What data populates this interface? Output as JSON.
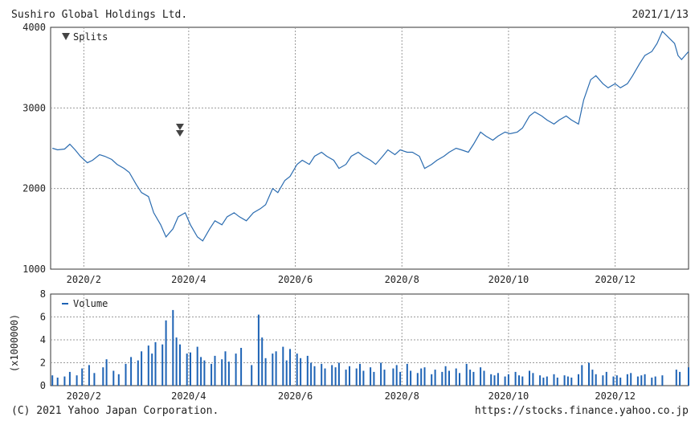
{
  "header": {
    "company": "Sushiro Global Holdings Ltd.",
    "date": "2021/1/13"
  },
  "footer": {
    "copyright": "(C) 2021 Yahoo Japan Corporation.",
    "url": "https://stocks.finance.yahoo.co.jp"
  },
  "colors": {
    "price_line": "#2b6cb0",
    "volume_bar": "#1e63b5",
    "grid": "#9a9a9a",
    "axis": "#333333",
    "split_marker": "#444444"
  },
  "chart_data": [
    {
      "type": "line",
      "name": "price",
      "legend": "Splits",
      "legend_marker": "down-triangle",
      "ylim": [
        1000,
        4000
      ],
      "yticks": [
        1000,
        2000,
        3000,
        4000
      ],
      "xlim_day_index": [
        0,
        365
      ],
      "xtick_labels": [
        "2020/2",
        "2020/4",
        "2020/6",
        "2020/8",
        "2020/10",
        "2020/12"
      ],
      "xtick_dates": [
        "2020-02-01",
        "2020-04-01",
        "2020-06-01",
        "2020-08-01",
        "2020-10-01",
        "2020-12-01"
      ],
      "split_markers": [
        {
          "date": "2020-03-27",
          "count": 2
        }
      ],
      "grid": true,
      "points": [
        [
          "2020-01-14",
          2500
        ],
        [
          "2020-01-17",
          2480
        ],
        [
          "2020-01-21",
          2490
        ],
        [
          "2020-01-24",
          2550
        ],
        [
          "2020-01-27",
          2480
        ],
        [
          "2020-01-30",
          2400
        ],
        [
          "2020-02-03",
          2320
        ],
        [
          "2020-02-06",
          2350
        ],
        [
          "2020-02-10",
          2420
        ],
        [
          "2020-02-13",
          2400
        ],
        [
          "2020-02-17",
          2360
        ],
        [
          "2020-02-20",
          2300
        ],
        [
          "2020-02-24",
          2250
        ],
        [
          "2020-02-27",
          2200
        ],
        [
          "2020-03-02",
          2050
        ],
        [
          "2020-03-05",
          1950
        ],
        [
          "2020-03-09",
          1900
        ],
        [
          "2020-03-12",
          1700
        ],
        [
          "2020-03-16",
          1550
        ],
        [
          "2020-03-19",
          1400
        ],
        [
          "2020-03-23",
          1500
        ],
        [
          "2020-03-26",
          1650
        ],
        [
          "2020-03-30",
          1700
        ],
        [
          "2020-04-02",
          1550
        ],
        [
          "2020-04-06",
          1400
        ],
        [
          "2020-04-09",
          1350
        ],
        [
          "2020-04-13",
          1500
        ],
        [
          "2020-04-16",
          1600
        ],
        [
          "2020-04-20",
          1550
        ],
        [
          "2020-04-23",
          1650
        ],
        [
          "2020-04-27",
          1700
        ],
        [
          "2020-04-30",
          1650
        ],
        [
          "2020-05-04",
          1600
        ],
        [
          "2020-05-08",
          1700
        ],
        [
          "2020-05-12",
          1750
        ],
        [
          "2020-05-15",
          1800
        ],
        [
          "2020-05-19",
          2000
        ],
        [
          "2020-05-22",
          1950
        ],
        [
          "2020-05-26",
          2100
        ],
        [
          "2020-05-29",
          2150
        ],
        [
          "2020-06-02",
          2300
        ],
        [
          "2020-06-05",
          2350
        ],
        [
          "2020-06-09",
          2300
        ],
        [
          "2020-06-12",
          2400
        ],
        [
          "2020-06-16",
          2450
        ],
        [
          "2020-06-19",
          2400
        ],
        [
          "2020-06-23",
          2350
        ],
        [
          "2020-06-26",
          2250
        ],
        [
          "2020-06-30",
          2300
        ],
        [
          "2020-07-03",
          2400
        ],
        [
          "2020-07-07",
          2450
        ],
        [
          "2020-07-10",
          2400
        ],
        [
          "2020-07-14",
          2350
        ],
        [
          "2020-07-17",
          2300
        ],
        [
          "2020-07-21",
          2400
        ],
        [
          "2020-07-24",
          2480
        ],
        [
          "2020-07-28",
          2420
        ],
        [
          "2020-07-31",
          2480
        ],
        [
          "2020-08-04",
          2450
        ],
        [
          "2020-08-07",
          2450
        ],
        [
          "2020-08-11",
          2400
        ],
        [
          "2020-08-14",
          2250
        ],
        [
          "2020-08-18",
          2300
        ],
        [
          "2020-08-21",
          2350
        ],
        [
          "2020-08-25",
          2400
        ],
        [
          "2020-08-28",
          2450
        ],
        [
          "2020-09-01",
          2500
        ],
        [
          "2020-09-04",
          2480
        ],
        [
          "2020-09-08",
          2450
        ],
        [
          "2020-09-11",
          2550
        ],
        [
          "2020-09-15",
          2700
        ],
        [
          "2020-09-18",
          2650
        ],
        [
          "2020-09-22",
          2600
        ],
        [
          "2020-09-25",
          2650
        ],
        [
          "2020-09-29",
          2700
        ],
        [
          "2020-10-02",
          2680
        ],
        [
          "2020-10-06",
          2700
        ],
        [
          "2020-10-09",
          2750
        ],
        [
          "2020-10-13",
          2900
        ],
        [
          "2020-10-16",
          2950
        ],
        [
          "2020-10-20",
          2900
        ],
        [
          "2020-10-23",
          2850
        ],
        [
          "2020-10-27",
          2800
        ],
        [
          "2020-10-30",
          2850
        ],
        [
          "2020-11-03",
          2900
        ],
        [
          "2020-11-06",
          2850
        ],
        [
          "2020-11-10",
          2800
        ],
        [
          "2020-11-13",
          3100
        ],
        [
          "2020-11-17",
          3350
        ],
        [
          "2020-11-20",
          3400
        ],
        [
          "2020-11-24",
          3300
        ],
        [
          "2020-11-27",
          3250
        ],
        [
          "2020-12-01",
          3300
        ],
        [
          "2020-12-04",
          3250
        ],
        [
          "2020-12-08",
          3300
        ],
        [
          "2020-12-11",
          3400
        ],
        [
          "2020-12-15",
          3550
        ],
        [
          "2020-12-18",
          3650
        ],
        [
          "2020-12-22",
          3700
        ],
        [
          "2020-12-25",
          3800
        ],
        [
          "2020-12-28",
          3950
        ],
        [
          "2021-01-04",
          3800
        ],
        [
          "2021-01-06",
          3650
        ],
        [
          "2021-01-08",
          3600
        ],
        [
          "2021-01-12",
          3700
        ]
      ]
    },
    {
      "type": "bar",
      "name": "volume",
      "legend": "Volume",
      "ylabel": "(x1000000)",
      "ylim": [
        0,
        8
      ],
      "yticks": [
        0,
        2,
        4,
        6,
        8
      ],
      "xlim_day_index": [
        0,
        365
      ],
      "xtick_labels": [
        "2020/2",
        "2020/4",
        "2020/6",
        "2020/8",
        "2020/10",
        "2020/12"
      ],
      "xtick_dates": [
        "2020-02-01",
        "2020-04-01",
        "2020-06-01",
        "2020-08-01",
        "2020-10-01",
        "2020-12-01"
      ],
      "grid": true,
      "bars": [
        [
          "2020-01-14",
          0.9
        ],
        [
          "2020-01-17",
          0.7
        ],
        [
          "2020-01-21",
          0.8
        ],
        [
          "2020-01-24",
          1.2
        ],
        [
          "2020-01-28",
          0.9
        ],
        [
          "2020-01-31",
          1.5
        ],
        [
          "2020-02-04",
          1.8
        ],
        [
          "2020-02-07",
          1.1
        ],
        [
          "2020-02-12",
          1.6
        ],
        [
          "2020-02-14",
          2.3
        ],
        [
          "2020-02-18",
          1.3
        ],
        [
          "2020-02-21",
          1.0
        ],
        [
          "2020-02-25",
          1.9
        ],
        [
          "2020-02-28",
          2.5
        ],
        [
          "2020-03-03",
          2.2
        ],
        [
          "2020-03-05",
          3.0
        ],
        [
          "2020-03-09",
          3.5
        ],
        [
          "2020-03-11",
          2.8
        ],
        [
          "2020-03-13",
          3.8
        ],
        [
          "2020-03-17",
          3.6
        ],
        [
          "2020-03-19",
          5.7
        ],
        [
          "2020-03-23",
          6.6
        ],
        [
          "2020-03-25",
          4.2
        ],
        [
          "2020-03-27",
          3.6
        ],
        [
          "2020-03-31",
          2.8
        ],
        [
          "2020-04-02",
          2.9
        ],
        [
          "2020-04-06",
          3.4
        ],
        [
          "2020-04-08",
          2.5
        ],
        [
          "2020-04-10",
          2.2
        ],
        [
          "2020-04-14",
          1.9
        ],
        [
          "2020-04-16",
          2.6
        ],
        [
          "2020-04-20",
          2.3
        ],
        [
          "2020-04-22",
          3.0
        ],
        [
          "2020-04-24",
          2.1
        ],
        [
          "2020-04-28",
          2.8
        ],
        [
          "2020-05-01",
          3.3
        ],
        [
          "2020-05-07",
          1.8
        ],
        [
          "2020-05-11",
          6.2
        ],
        [
          "2020-05-13",
          4.2
        ],
        [
          "2020-05-15",
          2.4
        ],
        [
          "2020-05-19",
          2.8
        ],
        [
          "2020-05-21",
          3.0
        ],
        [
          "2020-05-25",
          3.4
        ],
        [
          "2020-05-27",
          2.2
        ],
        [
          "2020-05-29",
          3.2
        ],
        [
          "2020-06-02",
          2.8
        ],
        [
          "2020-06-04",
          2.4
        ],
        [
          "2020-06-08",
          2.6
        ],
        [
          "2020-06-10",
          2.0
        ],
        [
          "2020-06-12",
          1.7
        ],
        [
          "2020-06-16",
          1.9
        ],
        [
          "2020-06-18",
          1.5
        ],
        [
          "2020-06-22",
          1.8
        ],
        [
          "2020-06-24",
          1.6
        ],
        [
          "2020-06-26",
          2.0
        ],
        [
          "2020-06-30",
          1.4
        ],
        [
          "2020-07-02",
          1.7
        ],
        [
          "2020-07-06",
          1.5
        ],
        [
          "2020-07-08",
          1.9
        ],
        [
          "2020-07-10",
          1.3
        ],
        [
          "2020-07-14",
          1.6
        ],
        [
          "2020-07-16",
          1.2
        ],
        [
          "2020-07-20",
          2.0
        ],
        [
          "2020-07-22",
          1.4
        ],
        [
          "2020-07-27",
          1.5
        ],
        [
          "2020-07-29",
          1.8
        ],
        [
          "2020-07-31",
          1.2
        ],
        [
          "2020-08-04",
          1.9
        ],
        [
          "2020-08-06",
          1.3
        ],
        [
          "2020-08-10",
          1.1
        ],
        [
          "2020-08-12",
          1.5
        ],
        [
          "2020-08-14",
          1.6
        ],
        [
          "2020-08-18",
          1.0
        ],
        [
          "2020-08-20",
          1.4
        ],
        [
          "2020-08-24",
          1.2
        ],
        [
          "2020-08-26",
          1.7
        ],
        [
          "2020-08-28",
          1.3
        ],
        [
          "2020-09-01",
          1.5
        ],
        [
          "2020-09-03",
          1.1
        ],
        [
          "2020-09-07",
          1.9
        ],
        [
          "2020-09-09",
          1.4
        ],
        [
          "2020-09-11",
          1.2
        ],
        [
          "2020-09-15",
          1.6
        ],
        [
          "2020-09-17",
          1.3
        ],
        [
          "2020-09-21",
          1.0
        ],
        [
          "2020-09-23",
          0.9
        ],
        [
          "2020-09-25",
          1.1
        ],
        [
          "2020-09-29",
          0.8
        ],
        [
          "2020-10-01",
          1.0
        ],
        [
          "2020-10-05",
          1.2
        ],
        [
          "2020-10-07",
          0.9
        ],
        [
          "2020-10-09",
          0.8
        ],
        [
          "2020-10-13",
          1.3
        ],
        [
          "2020-10-15",
          1.1
        ],
        [
          "2020-10-19",
          0.9
        ],
        [
          "2020-10-21",
          0.7
        ],
        [
          "2020-10-23",
          0.8
        ],
        [
          "2020-10-27",
          1.0
        ],
        [
          "2020-10-29",
          0.7
        ],
        [
          "2020-11-02",
          0.9
        ],
        [
          "2020-11-04",
          0.8
        ],
        [
          "2020-11-06",
          0.7
        ],
        [
          "2020-11-10",
          1.0
        ],
        [
          "2020-11-12",
          1.8
        ],
        [
          "2020-11-16",
          2.0
        ],
        [
          "2020-11-18",
          1.4
        ],
        [
          "2020-11-20",
          1.0
        ],
        [
          "2020-11-24",
          0.9
        ],
        [
          "2020-11-26",
          1.2
        ],
        [
          "2020-11-30",
          0.8
        ],
        [
          "2020-12-02",
          0.9
        ],
        [
          "2020-12-04",
          0.7
        ],
        [
          "2020-12-08",
          1.0
        ],
        [
          "2020-12-10",
          1.1
        ],
        [
          "2020-12-14",
          0.8
        ],
        [
          "2020-12-16",
          0.9
        ],
        [
          "2020-12-18",
          1.0
        ],
        [
          "2020-12-22",
          0.7
        ],
        [
          "2020-12-24",
          0.8
        ],
        [
          "2020-12-28",
          0.9
        ],
        [
          "2021-01-05",
          1.4
        ],
        [
          "2021-01-07",
          1.2
        ],
        [
          "2021-01-12",
          1.6
        ]
      ]
    }
  ]
}
